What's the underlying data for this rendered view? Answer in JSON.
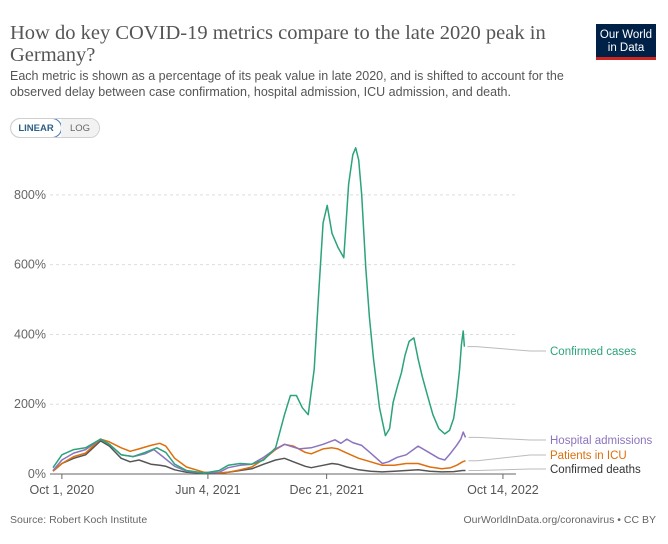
{
  "title": "How do key COVID-19 metrics compare to the late 2020 peak in Germany?",
  "subtitle": "Each metric is shown as a percentage of its peak value in late 2020, and is shifted to account for the observed delay between case confirmation, hospital admission, ICU admission, and death.",
  "logo": {
    "line1": "Our World",
    "line2": "in Data"
  },
  "toggle": {
    "linear": "LINEAR",
    "log": "LOG"
  },
  "source": "Source: Robert Koch Institute",
  "credit": "OurWorldInData.org/coronavirus • CC BY",
  "colors": {
    "cases": "#2ba37b",
    "hospital": "#8b74bd",
    "icu": "#dd6f0d",
    "deaths": "#555555",
    "grid": "#dddddd",
    "axis": "#666666"
  },
  "chart_data": {
    "type": "line",
    "x_unit": "days since Oct 1, 2020",
    "x_range": [
      -20,
      765
    ],
    "ylim": [
      0,
      900
    ],
    "yticks": [
      0,
      200,
      400,
      600,
      800
    ],
    "ytick_labels": [
      "0%",
      "200%",
      "400%",
      "600%",
      "800%"
    ],
    "xticks": [
      0,
      246,
      446,
      743
    ],
    "xtick_labels": [
      "Oct 1, 2020",
      "Jun 4, 2021",
      "Dec 21, 2021",
      "Oct 14, 2022"
    ],
    "series": [
      {
        "name": "Confirmed cases",
        "key": "cases",
        "points": [
          [
            -15,
            18
          ],
          [
            0,
            55
          ],
          [
            20,
            70
          ],
          [
            40,
            75
          ],
          [
            65,
            100
          ],
          [
            80,
            85
          ],
          [
            100,
            55
          ],
          [
            120,
            50
          ],
          [
            140,
            62
          ],
          [
            160,
            75
          ],
          [
            175,
            62
          ],
          [
            190,
            28
          ],
          [
            210,
            10
          ],
          [
            240,
            3
          ],
          [
            265,
            10
          ],
          [
            280,
            25
          ],
          [
            300,
            30
          ],
          [
            320,
            28
          ],
          [
            340,
            40
          ],
          [
            360,
            75
          ],
          [
            375,
            170
          ],
          [
            385,
            225
          ],
          [
            395,
            225
          ],
          [
            405,
            190
          ],
          [
            415,
            170
          ],
          [
            425,
            300
          ],
          [
            432,
            500
          ],
          [
            440,
            720
          ],
          [
            447,
            770
          ],
          [
            455,
            690
          ],
          [
            465,
            650
          ],
          [
            475,
            620
          ],
          [
            483,
            830
          ],
          [
            490,
            915
          ],
          [
            495,
            935
          ],
          [
            500,
            900
          ],
          [
            505,
            800
          ],
          [
            512,
            590
          ],
          [
            518,
            450
          ],
          [
            525,
            330
          ],
          [
            535,
            190
          ],
          [
            545,
            110
          ],
          [
            552,
            130
          ],
          [
            558,
            205
          ],
          [
            565,
            250
          ],
          [
            572,
            290
          ],
          [
            578,
            340
          ],
          [
            585,
            380
          ],
          [
            593,
            390
          ],
          [
            600,
            330
          ],
          [
            607,
            280
          ],
          [
            615,
            230
          ],
          [
            625,
            170
          ],
          [
            635,
            130
          ],
          [
            645,
            115
          ],
          [
            653,
            125
          ],
          [
            660,
            160
          ],
          [
            665,
            220
          ],
          [
            670,
            300
          ],
          [
            673,
            370
          ],
          [
            676,
            410
          ],
          [
            678,
            365
          ]
        ]
      },
      {
        "name": "Hospital admissions",
        "key": "hospital",
        "points": [
          [
            -15,
            10
          ],
          [
            0,
            40
          ],
          [
            20,
            60
          ],
          [
            40,
            70
          ],
          [
            65,
            100
          ],
          [
            80,
            85
          ],
          [
            100,
            55
          ],
          [
            120,
            50
          ],
          [
            140,
            58
          ],
          [
            155,
            70
          ],
          [
            170,
            50
          ],
          [
            190,
            22
          ],
          [
            210,
            8
          ],
          [
            240,
            3
          ],
          [
            265,
            5
          ],
          [
            280,
            18
          ],
          [
            300,
            25
          ],
          [
            320,
            28
          ],
          [
            340,
            48
          ],
          [
            360,
            72
          ],
          [
            375,
            85
          ],
          [
            385,
            80
          ],
          [
            400,
            72
          ],
          [
            420,
            75
          ],
          [
            440,
            85
          ],
          [
            460,
            98
          ],
          [
            470,
            88
          ],
          [
            480,
            100
          ],
          [
            490,
            90
          ],
          [
            505,
            82
          ],
          [
            520,
            60
          ],
          [
            540,
            30
          ],
          [
            550,
            35
          ],
          [
            565,
            48
          ],
          [
            580,
            55
          ],
          [
            600,
            80
          ],
          [
            615,
            65
          ],
          [
            625,
            55
          ],
          [
            635,
            45
          ],
          [
            645,
            40
          ],
          [
            655,
            60
          ],
          [
            665,
            82
          ],
          [
            672,
            100
          ],
          [
            676,
            120
          ],
          [
            680,
            105
          ]
        ]
      },
      {
        "name": "Patients in ICU",
        "key": "icu",
        "points": [
          [
            -15,
            8
          ],
          [
            0,
            30
          ],
          [
            20,
            50
          ],
          [
            40,
            60
          ],
          [
            65,
            100
          ],
          [
            80,
            92
          ],
          [
            100,
            75
          ],
          [
            115,
            65
          ],
          [
            130,
            72
          ],
          [
            150,
            82
          ],
          [
            165,
            88
          ],
          [
            175,
            80
          ],
          [
            190,
            45
          ],
          [
            210,
            20
          ],
          [
            240,
            5
          ],
          [
            265,
            3
          ],
          [
            280,
            5
          ],
          [
            300,
            12
          ],
          [
            320,
            20
          ],
          [
            340,
            42
          ],
          [
            360,
            70
          ],
          [
            375,
            85
          ],
          [
            390,
            80
          ],
          [
            410,
            62
          ],
          [
            420,
            58
          ],
          [
            440,
            72
          ],
          [
            455,
            75
          ],
          [
            465,
            72
          ],
          [
            480,
            60
          ],
          [
            500,
            45
          ],
          [
            520,
            35
          ],
          [
            540,
            25
          ],
          [
            560,
            25
          ],
          [
            580,
            30
          ],
          [
            600,
            30
          ],
          [
            620,
            20
          ],
          [
            640,
            15
          ],
          [
            655,
            18
          ],
          [
            665,
            25
          ],
          [
            675,
            35
          ],
          [
            680,
            38
          ]
        ]
      },
      {
        "name": "Confirmed deaths",
        "key": "deaths",
        "points": [
          [
            -15,
            8
          ],
          [
            0,
            30
          ],
          [
            20,
            45
          ],
          [
            40,
            55
          ],
          [
            65,
            95
          ],
          [
            80,
            80
          ],
          [
            100,
            45
          ],
          [
            115,
            35
          ],
          [
            130,
            40
          ],
          [
            150,
            28
          ],
          [
            165,
            25
          ],
          [
            175,
            22
          ],
          [
            190,
            12
          ],
          [
            210,
            5
          ],
          [
            240,
            2
          ],
          [
            265,
            2
          ],
          [
            280,
            5
          ],
          [
            300,
            10
          ],
          [
            320,
            15
          ],
          [
            340,
            28
          ],
          [
            360,
            40
          ],
          [
            375,
            45
          ],
          [
            390,
            35
          ],
          [
            410,
            22
          ],
          [
            420,
            18
          ],
          [
            440,
            25
          ],
          [
            455,
            30
          ],
          [
            465,
            28
          ],
          [
            480,
            20
          ],
          [
            500,
            12
          ],
          [
            520,
            8
          ],
          [
            540,
            6
          ],
          [
            560,
            8
          ],
          [
            580,
            10
          ],
          [
            600,
            12
          ],
          [
            620,
            8
          ],
          [
            640,
            6
          ],
          [
            660,
            7
          ],
          [
            675,
            10
          ],
          [
            680,
            10
          ]
        ]
      }
    ],
    "end_labels": [
      {
        "key": "cases",
        "text": "Confirmed cases"
      },
      {
        "key": "hospital",
        "text": "Hospital admissions"
      },
      {
        "key": "icu",
        "text": "Patients in ICU"
      },
      {
        "key": "deaths",
        "text": "Confirmed deaths"
      }
    ]
  }
}
